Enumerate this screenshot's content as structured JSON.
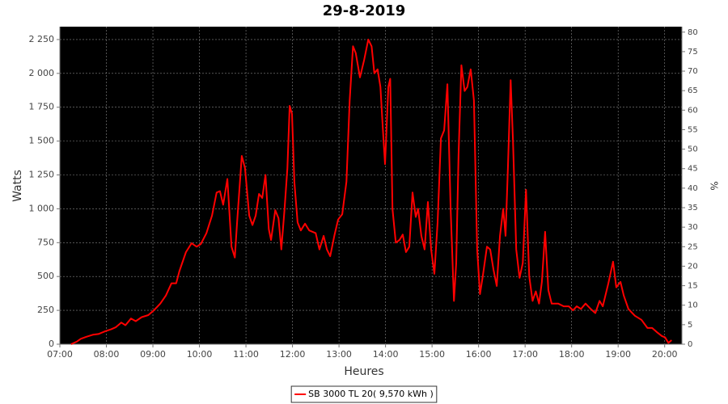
{
  "chart_data": {
    "type": "line",
    "title": "29-8-2019",
    "x_label": "Heures",
    "y_label": "Watts",
    "y2_label": "%",
    "x": [
      7.24,
      7.37,
      7.45,
      7.57,
      7.71,
      7.83,
      7.97,
      8.1,
      8.2,
      8.32,
      8.41,
      8.53,
      8.63,
      8.76,
      8.9,
      9.02,
      9.16,
      9.28,
      9.4,
      9.5,
      9.57,
      9.71,
      9.83,
      9.94,
      10.03,
      10.15,
      10.27,
      10.37,
      10.44,
      10.51,
      10.6,
      10.69,
      10.76,
      10.81,
      10.91,
      10.98,
      11.07,
      11.14,
      11.21,
      11.28,
      11.35,
      11.42,
      11.49,
      11.54,
      11.63,
      11.7,
      11.76,
      11.83,
      11.89,
      11.94,
      11.99,
      12.04,
      12.11,
      12.18,
      12.27,
      12.36,
      12.5,
      12.58,
      12.67,
      12.74,
      12.81,
      12.9,
      12.98,
      13.07,
      13.16,
      13.23,
      13.3,
      13.36,
      13.45,
      13.54,
      13.63,
      13.7,
      13.76,
      13.83,
      13.89,
      13.94,
      13.99,
      14.06,
      14.1,
      14.15,
      14.22,
      14.3,
      14.37,
      14.44,
      14.51,
      14.58,
      14.65,
      14.7,
      14.77,
      14.84,
      14.91,
      14.98,
      15.05,
      15.12,
      15.19,
      15.26,
      15.33,
      15.4,
      15.47,
      15.52,
      15.57,
      15.63,
      15.7,
      15.76,
      15.83,
      15.9,
      15.97,
      16.03,
      16.09,
      16.18,
      16.25,
      16.32,
      16.39,
      16.46,
      16.53,
      16.58,
      16.63,
      16.69,
      16.74,
      16.81,
      16.88,
      16.95,
      17.02,
      17.09,
      17.16,
      17.23,
      17.3,
      17.36,
      17.43,
      17.5,
      17.57,
      17.71,
      17.83,
      17.94,
      18.03,
      18.11,
      18.2,
      18.3,
      18.41,
      18.51,
      18.6,
      18.67,
      18.79,
      18.89,
      18.96,
      19.05,
      19.12,
      19.22,
      19.36,
      19.5,
      19.63,
      19.73,
      19.83,
      19.94,
      20.01,
      20.08,
      20.15
    ],
    "series": [
      {
        "name": "SB 3000 TL 20( 9,570 kWh )",
        "color": "#ff0000",
        "values": [
          0,
          20,
          40,
          55,
          70,
          75,
          95,
          110,
          125,
          160,
          140,
          190,
          170,
          200,
          215,
          250,
          300,
          360,
          450,
          450,
          540,
          680,
          745,
          720,
          740,
          820,
          950,
          1120,
          1130,
          1030,
          1220,
          720,
          640,
          900,
          1390,
          1300,
          950,
          880,
          950,
          1110,
          1080,
          1250,
          850,
          770,
          990,
          930,
          700,
          1000,
          1300,
          1760,
          1700,
          1200,
          900,
          840,
          890,
          840,
          820,
          700,
          800,
          700,
          650,
          800,
          920,
          960,
          1200,
          1800,
          2200,
          2150,
          1970,
          2100,
          2250,
          2200,
          2000,
          2030,
          1900,
          1600,
          1330,
          1900,
          1960,
          1000,
          750,
          770,
          810,
          680,
          720,
          1120,
          940,
          1000,
          800,
          700,
          1050,
          700,
          520,
          900,
          1520,
          1580,
          1920,
          1000,
          320,
          600,
          1400,
          2060,
          1870,
          1900,
          2030,
          1800,
          700,
          370,
          500,
          720,
          700,
          550,
          430,
          800,
          1000,
          800,
          1300,
          1950,
          1500,
          700,
          490,
          600,
          1140,
          500,
          320,
          390,
          300,
          460,
          830,
          400,
          300,
          300,
          280,
          280,
          250,
          280,
          260,
          300,
          260,
          230,
          320,
          280,
          450,
          610,
          420,
          460,
          360,
          260,
          210,
          180,
          120,
          120,
          90,
          60,
          50,
          10,
          30
        ]
      }
    ],
    "xlim": [
      7,
      20.37
    ],
    "xticks": [
      {
        "value": 7,
        "label": "07:00"
      },
      {
        "value": 8,
        "label": "08:00"
      },
      {
        "value": 9,
        "label": "09:00"
      },
      {
        "value": 10,
        "label": "10:00"
      },
      {
        "value": 11,
        "label": "11:00"
      },
      {
        "value": 12,
        "label": "12:00"
      },
      {
        "value": 13,
        "label": "13:00"
      },
      {
        "value": 14,
        "label": "14:00"
      },
      {
        "value": 15,
        "label": "15:00"
      },
      {
        "value": 16,
        "label": "16:00"
      },
      {
        "value": 17,
        "label": "17:00"
      },
      {
        "value": 18,
        "label": "18:00"
      },
      {
        "value": 19,
        "label": "19:00"
      },
      {
        "value": 20,
        "label": "20:00"
      }
    ],
    "ylim": [
      0,
      2345
    ],
    "yticks": [
      0,
      250,
      500,
      750,
      {
        "value": 1000,
        "label": "1 000"
      },
      {
        "value": 1250,
        "label": "1 250"
      },
      {
        "value": 1500,
        "label": "1 500"
      },
      {
        "value": 1750,
        "label": "1 750"
      },
      {
        "value": 2000,
        "label": "2 000"
      },
      {
        "value": 2250,
        "label": "2 250"
      }
    ],
    "y2lim": [
      0,
      81.4
    ],
    "y2ticks": [
      0,
      5,
      10,
      15,
      20,
      25,
      30,
      35,
      40,
      45,
      50,
      55,
      60,
      65,
      70,
      75,
      80
    ],
    "grid": true,
    "legend": "bottom"
  }
}
